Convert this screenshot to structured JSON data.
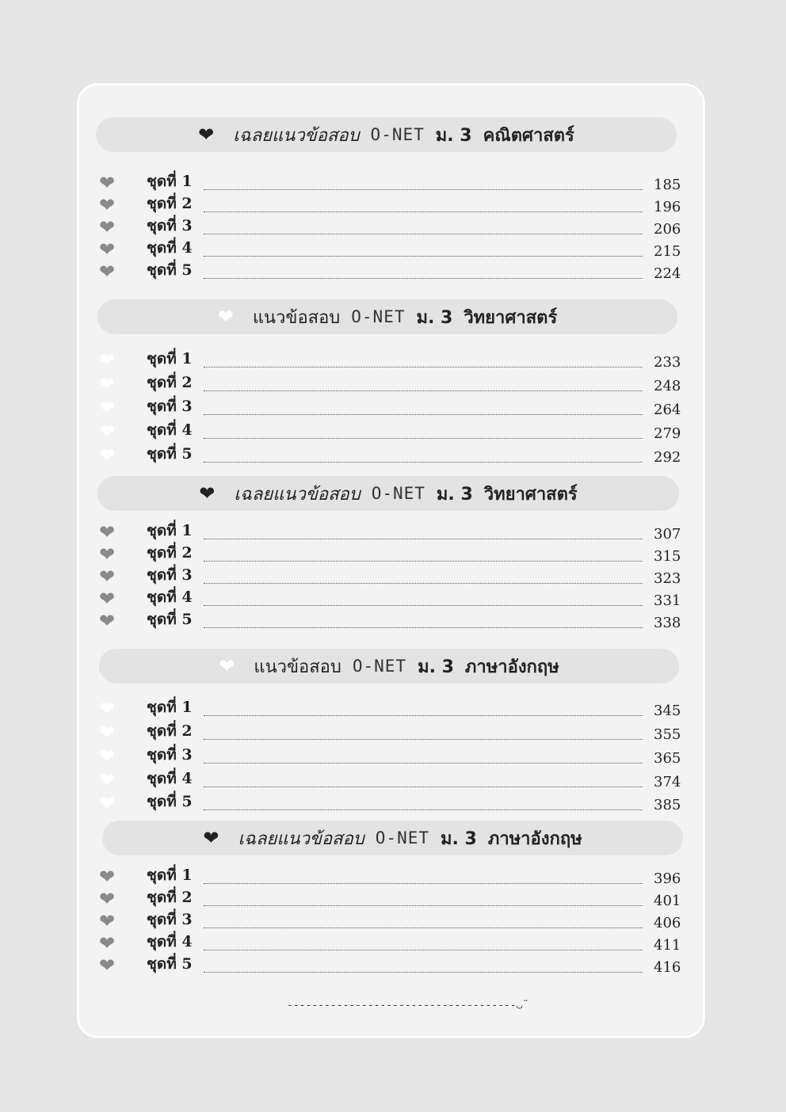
{
  "colors": {
    "page_bg": "#e6e6e6",
    "card_bg": "#f3f3f3",
    "bar_bg": "#e3e3e3",
    "heart_dark": "#222222",
    "heart_gray": "#8a8a8a",
    "heart_white": "#ffffff"
  },
  "sections": [
    {
      "prefix": "เฉลยแนวข้อสอบ",
      "exam": "O-NET",
      "level": "ม. 3",
      "subject": "คณิตศาสตร์",
      "answer": true,
      "items": [
        {
          "label": "ชุดที่ 1",
          "page": "185"
        },
        {
          "label": "ชุดที่ 2",
          "page": "196"
        },
        {
          "label": "ชุดที่ 3",
          "page": "206"
        },
        {
          "label": "ชุดที่ 4",
          "page": "215"
        },
        {
          "label": "ชุดที่ 5",
          "page": "224"
        }
      ]
    },
    {
      "prefix": "แนวข้อสอบ",
      "exam": "O-NET",
      "level": "ม. 3",
      "subject": "วิทยาศาสตร์",
      "answer": false,
      "items": [
        {
          "label": "ชุดที่ 1",
          "page": "233"
        },
        {
          "label": "ชุดที่ 2",
          "page": "248"
        },
        {
          "label": "ชุดที่ 3",
          "page": "264"
        },
        {
          "label": "ชุดที่ 4",
          "page": "279"
        },
        {
          "label": "ชุดที่ 5",
          "page": "292"
        }
      ]
    },
    {
      "prefix": "เฉลยแนวข้อสอบ",
      "exam": "O-NET",
      "level": "ม. 3",
      "subject": "วิทยาศาสตร์",
      "answer": true,
      "items": [
        {
          "label": "ชุดที่ 1",
          "page": "307"
        },
        {
          "label": "ชุดที่ 2",
          "page": "315"
        },
        {
          "label": "ชุดที่ 3",
          "page": "323"
        },
        {
          "label": "ชุดที่ 4",
          "page": "331"
        },
        {
          "label": "ชุดที่ 5",
          "page": "338"
        }
      ]
    },
    {
      "prefix": "แนวข้อสอบ",
      "exam": "O-NET",
      "level": "ม. 3",
      "subject": "ภาษาอังกฤษ",
      "answer": false,
      "items": [
        {
          "label": "ชุดที่ 1",
          "page": "345"
        },
        {
          "label": "ชุดที่ 2",
          "page": "355"
        },
        {
          "label": "ชุดที่ 3",
          "page": "365"
        },
        {
          "label": "ชุดที่ 4",
          "page": "374"
        },
        {
          "label": "ชุดที่ 5",
          "page": "385"
        }
      ]
    },
    {
      "prefix": "เฉลยแนวข้อสอบ",
      "exam": "O-NET",
      "level": "ม. 3",
      "subject": "ภาษาอังกฤษ",
      "answer": true,
      "items": [
        {
          "label": "ชุดที่ 1",
          "page": "396"
        },
        {
          "label": "ชุดที่ 2",
          "page": "401"
        },
        {
          "label": "ชุดที่ 3",
          "page": "406"
        },
        {
          "label": "ชุดที่ 4",
          "page": "411"
        },
        {
          "label": "ชุดที่ 5",
          "page": "416"
        }
      ]
    }
  ],
  "footer": {
    "text": "-------------------------------------",
    "smiley_icon": "smiley-icon"
  }
}
